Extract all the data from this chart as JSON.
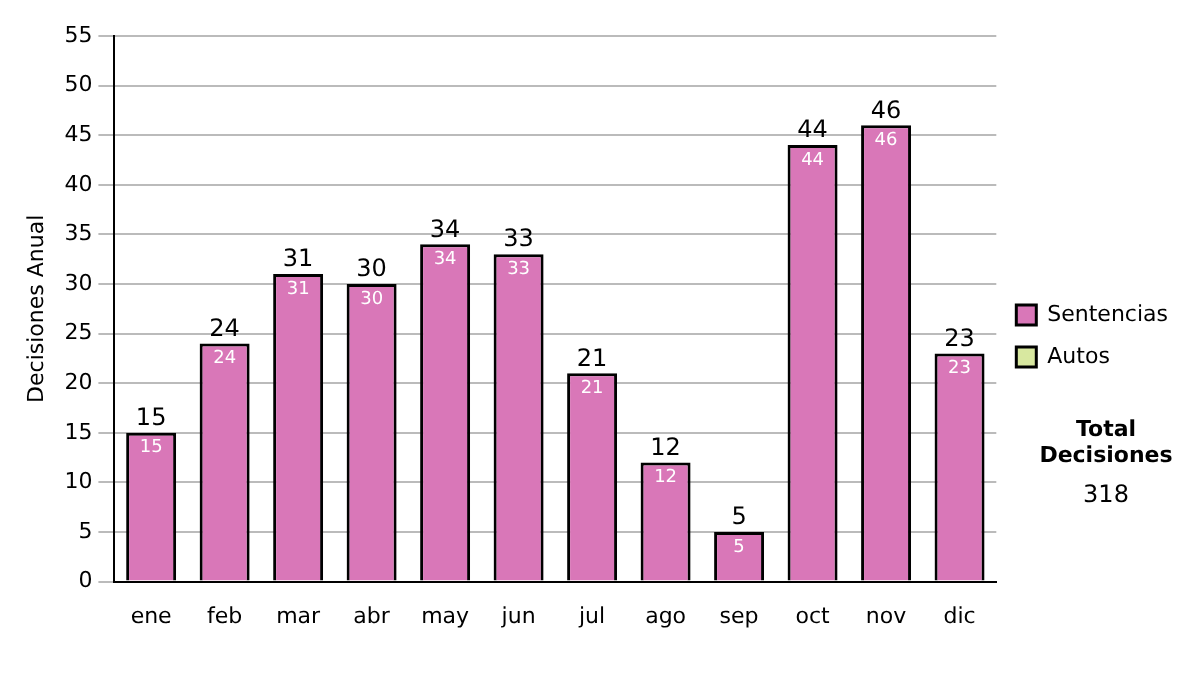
{
  "chart_data": {
    "type": "bar",
    "ylabel": "Decisiones Anual",
    "categories": [
      "ene",
      "feb",
      "mar",
      "abr",
      "may",
      "jun",
      "jul",
      "ago",
      "sep",
      "oct",
      "nov",
      "dic"
    ],
    "series": [
      {
        "name": "Sentencias",
        "color": "#d977b8",
        "values": [
          15,
          24,
          31,
          30,
          34,
          33,
          21,
          12,
          5,
          44,
          46,
          23
        ]
      },
      {
        "name": "Autos",
        "color": "#d8e8a0",
        "values": [
          null,
          null,
          null,
          null,
          null,
          null,
          null,
          null,
          null,
          null,
          null,
          null
        ]
      }
    ],
    "ylim": [
      0,
      55
    ],
    "yticks": [
      0,
      5,
      10,
      15,
      20,
      25,
      30,
      35,
      40,
      45,
      50,
      55
    ],
    "grid": "y",
    "legend": "right",
    "data_labels": true,
    "annotations": [
      "Total Decisiones",
      "318",
      {
        "text": "15",
        "x": "ene",
        "y": 15
      },
      {
        "text": "24",
        "x": "feb",
        "y": 24
      },
      {
        "text": "31",
        "x": "mar",
        "y": 31
      },
      {
        "text": "30",
        "x": "abr",
        "y": 30
      },
      {
        "text": "34",
        "x": "may",
        "y": 34
      },
      {
        "text": "33",
        "x": "jun",
        "y": 33
      },
      {
        "text": "21",
        "x": "jul",
        "y": 21
      },
      {
        "text": "12",
        "x": "ago",
        "y": 12
      },
      {
        "text": "5",
        "x": "sep",
        "y": 5
      },
      {
        "text": "44",
        "x": "oct",
        "y": 44
      },
      {
        "text": "46",
        "x": "nov",
        "y": 46
      },
      {
        "text": "23",
        "x": "dic",
        "y": 23
      }
    ]
  }
}
